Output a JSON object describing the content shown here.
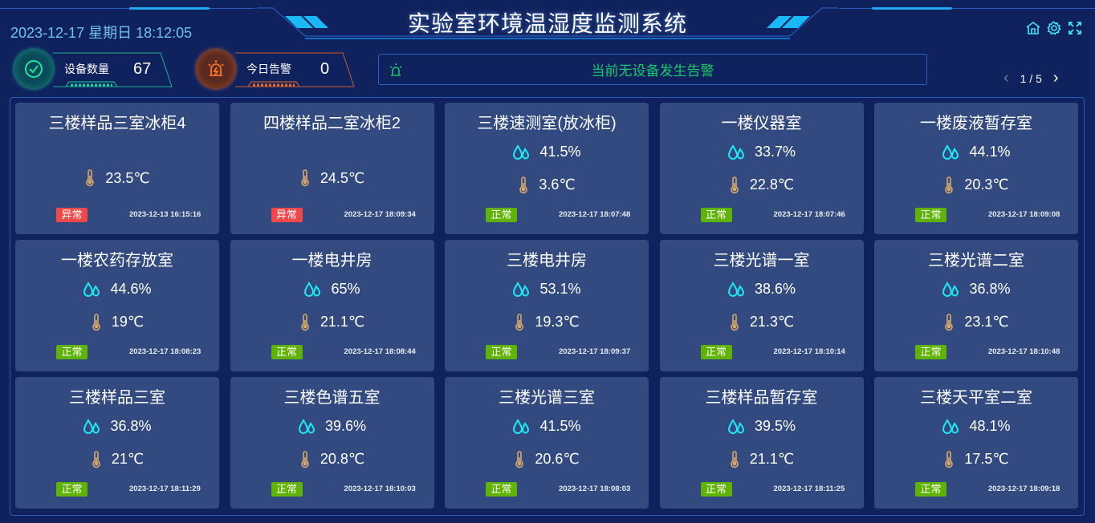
{
  "header": {
    "title": "实验室环境温湿度监测系统",
    "datetime": "2023-12-17 星期日 18:12:05",
    "icons": [
      "home-icon",
      "gear-icon",
      "fullscreen-icon"
    ]
  },
  "stats": {
    "devices": {
      "label": "设备数量",
      "value": "67",
      "color": "#1ed49a"
    },
    "alarms": {
      "label": "今日告警",
      "value": "0",
      "color": "#f06a22"
    }
  },
  "alarm_bar": {
    "message": "当前无设备发生告警",
    "color": "#18c96a"
  },
  "pager": {
    "text": "1 / 5"
  },
  "colors": {
    "abnormal": "#f04848",
    "normal": "#5fb304",
    "humidity_icon": "#1de9f6",
    "temp_icon": "#d9a86c"
  },
  "cards": [
    {
      "name": "三楼样品三室冰柜4",
      "humidity": null,
      "temp": "23.5℃",
      "status": "异常",
      "abnormal": true,
      "time": "2023-12-13 16:15:16"
    },
    {
      "name": "四楼样品二室冰柜2",
      "humidity": null,
      "temp": "24.5℃",
      "status": "异常",
      "abnormal": true,
      "time": "2023-12-17 18:09:34"
    },
    {
      "name": "三楼速测室(放冰柜)",
      "humidity": "41.5%",
      "temp": "3.6℃",
      "status": "正常",
      "abnormal": false,
      "time": "2023-12-17 18:07:48"
    },
    {
      "name": "一楼仪器室",
      "humidity": "33.7%",
      "temp": "22.8℃",
      "status": "正常",
      "abnormal": false,
      "time": "2023-12-17 18:07:46"
    },
    {
      "name": "一楼废液暂存室",
      "humidity": "44.1%",
      "temp": "20.3℃",
      "status": "正常",
      "abnormal": false,
      "time": "2023-12-17 18:09:08"
    },
    {
      "name": "一楼农药存放室",
      "humidity": "44.6%",
      "temp": "19℃",
      "status": "正常",
      "abnormal": false,
      "time": "2023-12-17 18:08:23"
    },
    {
      "name": "一楼电井房",
      "humidity": "65%",
      "temp": "21.1℃",
      "status": "正常",
      "abnormal": false,
      "time": "2023-12-17 18:08:44"
    },
    {
      "name": "三楼电井房",
      "humidity": "53.1%",
      "temp": "19.3℃",
      "status": "正常",
      "abnormal": false,
      "time": "2023-12-17 18:09:37"
    },
    {
      "name": "三楼光谱一室",
      "humidity": "38.6%",
      "temp": "21.3℃",
      "status": "正常",
      "abnormal": false,
      "time": "2023-12-17 18:10:14"
    },
    {
      "name": "三楼光谱二室",
      "humidity": "36.8%",
      "temp": "23.1℃",
      "status": "正常",
      "abnormal": false,
      "time": "2023-12-17 18:10:48"
    },
    {
      "name": "三楼样品三室",
      "humidity": "36.8%",
      "temp": "21℃",
      "status": "正常",
      "abnormal": false,
      "time": "2023-12-17 18:11:29"
    },
    {
      "name": "三楼色谱五室",
      "humidity": "39.6%",
      "temp": "20.8℃",
      "status": "正常",
      "abnormal": false,
      "time": "2023-12-17 18:10:03"
    },
    {
      "name": "三楼光谱三室",
      "humidity": "41.5%",
      "temp": "20.6℃",
      "status": "正常",
      "abnormal": false,
      "time": "2023-12-17 18:08:03"
    },
    {
      "name": "三楼样品暂存室",
      "humidity": "39.5%",
      "temp": "21.1℃",
      "status": "正常",
      "abnormal": false,
      "time": "2023-12-17 18:11:25"
    },
    {
      "name": "三楼天平室二室",
      "humidity": "48.1%",
      "temp": "17.5℃",
      "status": "正常",
      "abnormal": false,
      "time": "2023-12-17 18:09:18"
    }
  ]
}
